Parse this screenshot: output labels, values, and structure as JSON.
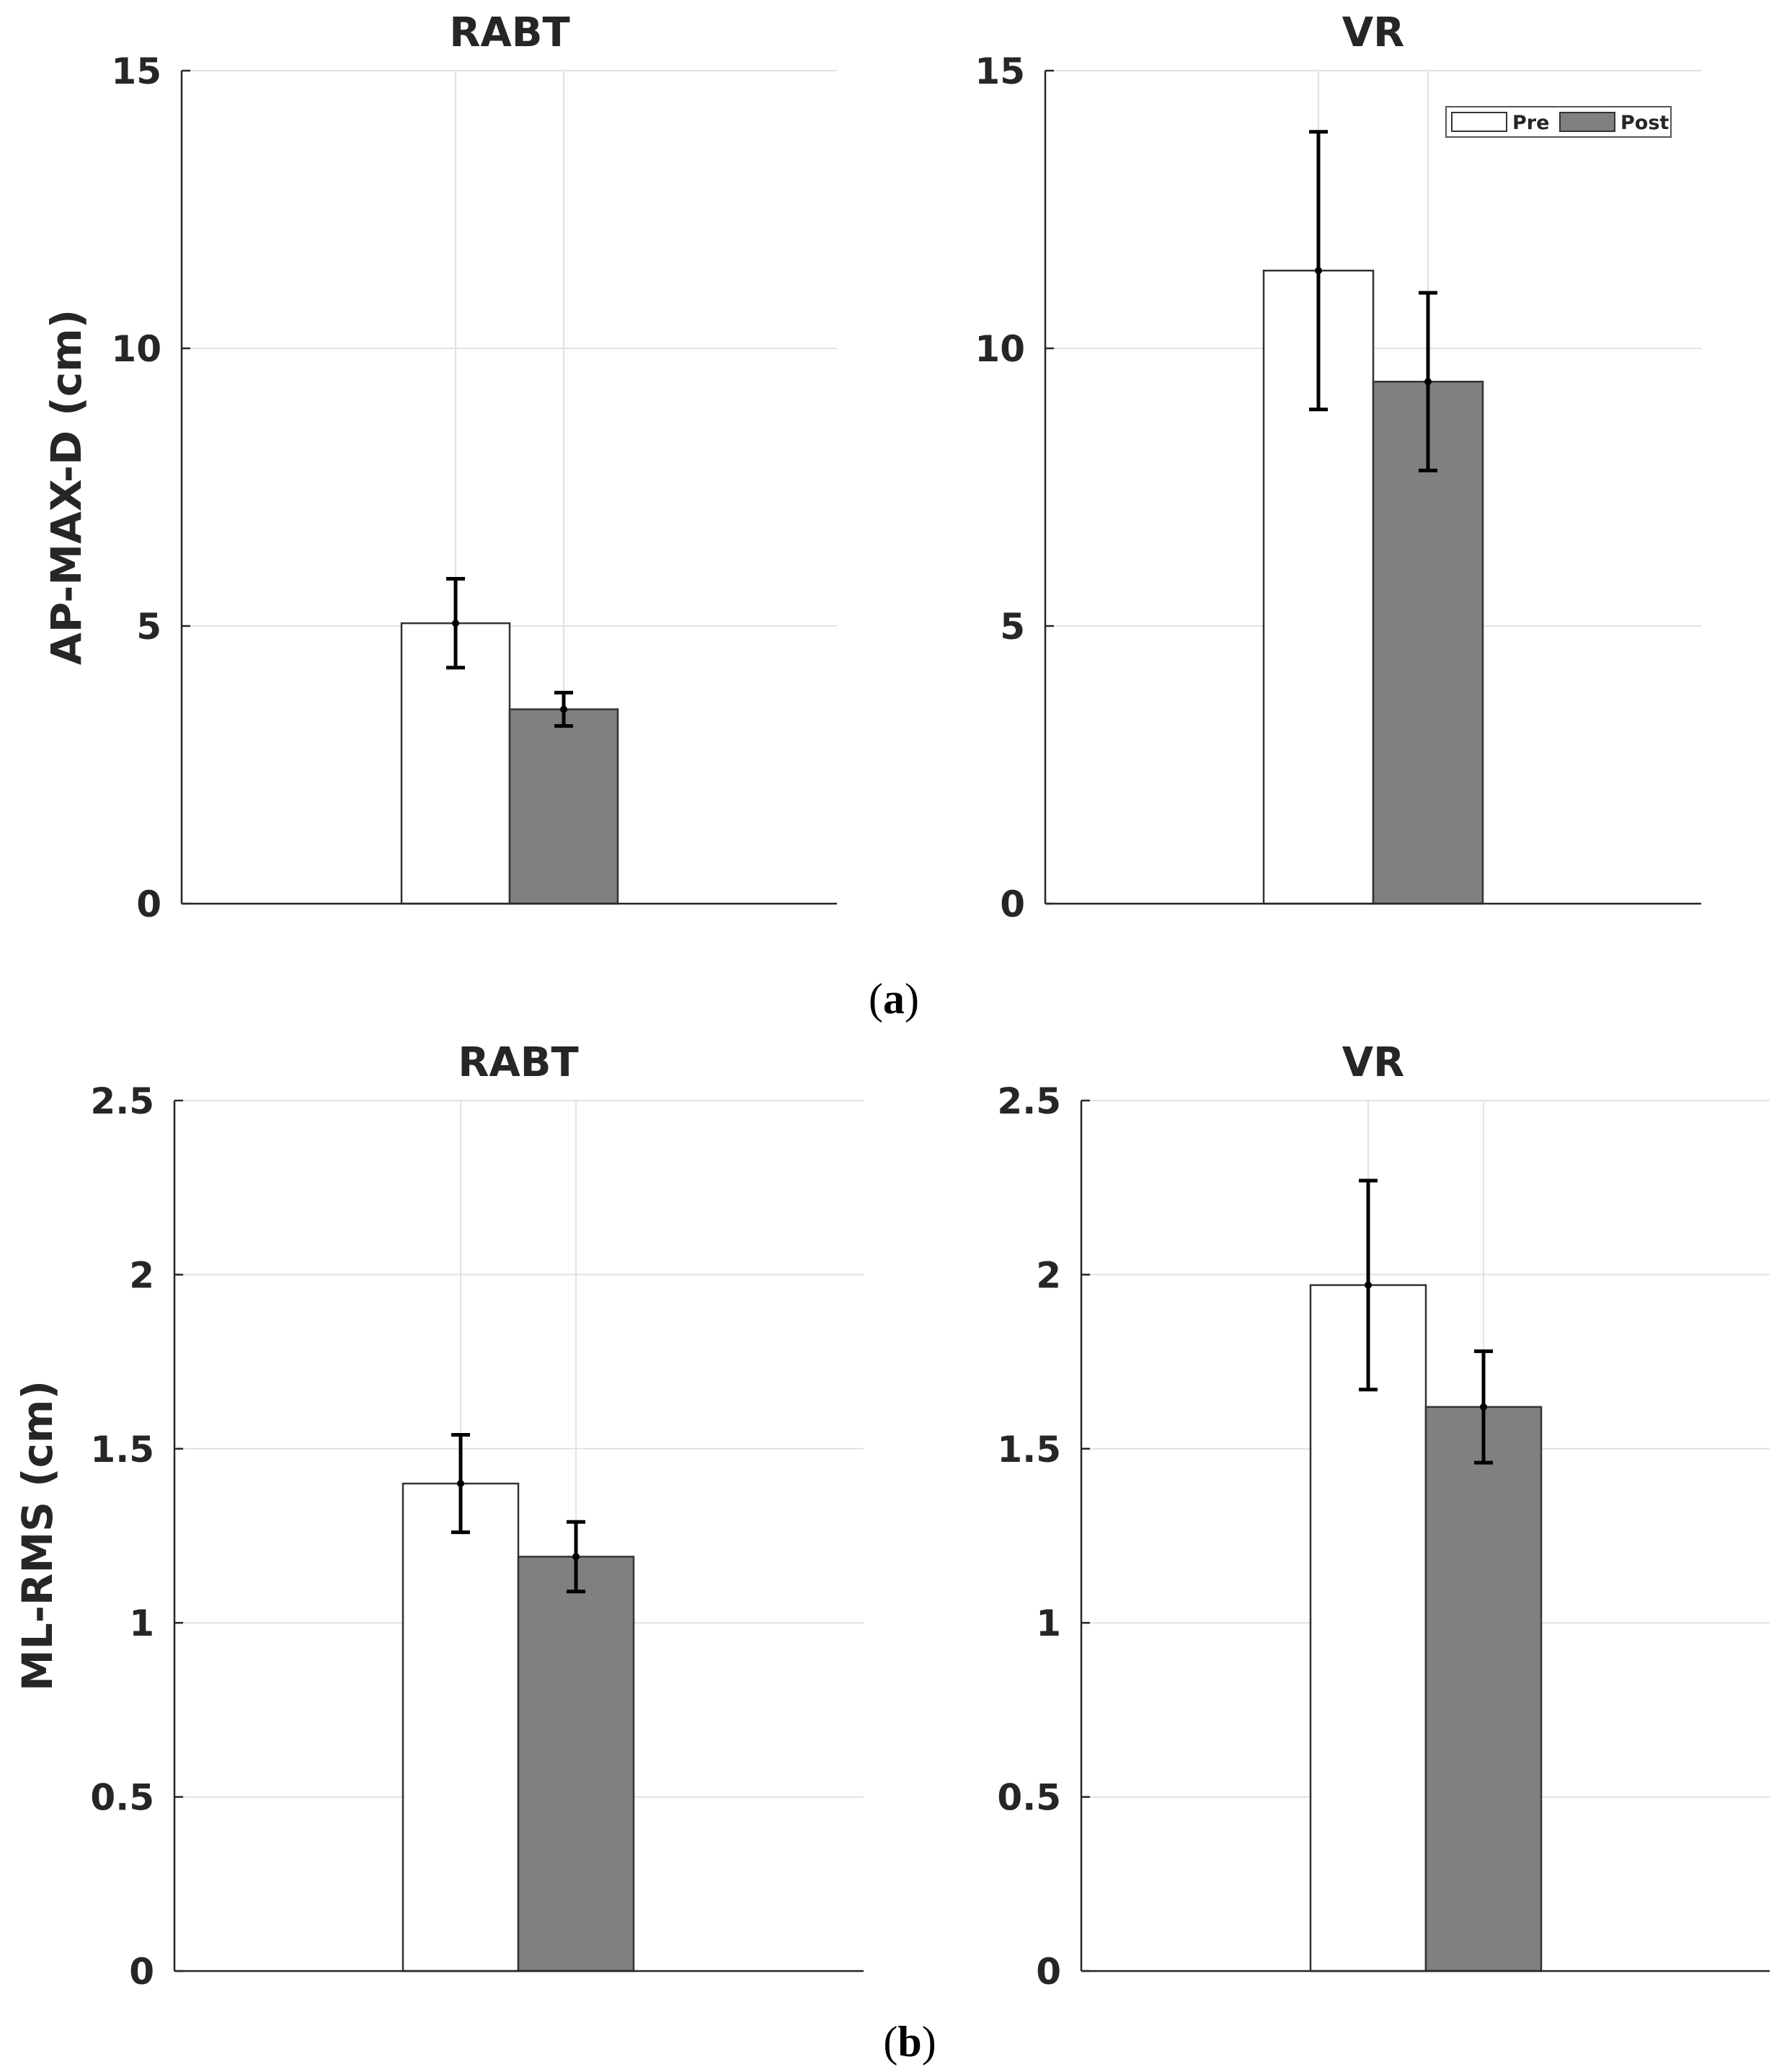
{
  "chart_data": [
    {
      "type": "bar",
      "panel": "a",
      "title": "RABT",
      "ylabel": "AP-MAX-D (cm)",
      "ylim": [
        0,
        15
      ],
      "yticks": [
        0,
        5,
        10,
        15
      ],
      "ytick_labels": [
        "0",
        "5",
        "10",
        "15"
      ],
      "grid": true,
      "series": [
        {
          "name": "Pre",
          "values": [
            5.05
          ],
          "error": [
            0.8
          ],
          "color": "#ffffff"
        },
        {
          "name": "Post",
          "values": [
            3.5
          ],
          "error": [
            0.3
          ],
          "color": "#808080"
        }
      ]
    },
    {
      "type": "bar",
      "panel": "a",
      "title": "VR",
      "ylabel": "",
      "ylim": [
        0,
        15
      ],
      "yticks": [
        0,
        5,
        10,
        15
      ],
      "ytick_labels": [
        "0",
        "5",
        "10",
        "15"
      ],
      "grid": true,
      "legend": {
        "placement": "top-right",
        "entries": [
          "Pre",
          "Post"
        ]
      },
      "series": [
        {
          "name": "Pre",
          "values": [
            11.4
          ],
          "error": [
            2.5
          ],
          "color": "#ffffff"
        },
        {
          "name": "Post",
          "values": [
            9.4
          ],
          "error": [
            1.6
          ],
          "color": "#808080"
        }
      ]
    },
    {
      "type": "bar",
      "panel": "b",
      "title": "RABT",
      "ylabel": "ML-RMS (cm)",
      "ylim": [
        0,
        2.5
      ],
      "yticks": [
        0,
        0.5,
        1,
        1.5,
        2,
        2.5
      ],
      "ytick_labels": [
        "0",
        "0.5",
        "1",
        "1.5",
        "2",
        "2.5"
      ],
      "grid": true,
      "series": [
        {
          "name": "Pre",
          "values": [
            1.4
          ],
          "error": [
            0.14
          ],
          "color": "#ffffff"
        },
        {
          "name": "Post",
          "values": [
            1.19
          ],
          "error": [
            0.1
          ],
          "color": "#808080"
        }
      ]
    },
    {
      "type": "bar",
      "panel": "b",
      "title": "VR",
      "ylabel": "",
      "ylim": [
        0,
        2.5
      ],
      "yticks": [
        0,
        0.5,
        1,
        1.5,
        2,
        2.5
      ],
      "ytick_labels": [
        "0",
        "0.5",
        "1",
        "1.5",
        "2",
        "2.5"
      ],
      "grid": true,
      "series": [
        {
          "name": "Pre",
          "values": [
            1.97
          ],
          "error": [
            0.3
          ],
          "color": "#ffffff"
        },
        {
          "name": "Post",
          "values": [
            1.62
          ],
          "error": [
            0.16
          ],
          "color": "#808080"
        }
      ]
    }
  ],
  "panel_labels": {
    "a": "a",
    "b": "b"
  },
  "colors": {
    "axis": "#262626",
    "grid": "#e2e2e2",
    "pre_fill": "#ffffff",
    "post_fill": "#808080",
    "error_bar": "#000000"
  }
}
